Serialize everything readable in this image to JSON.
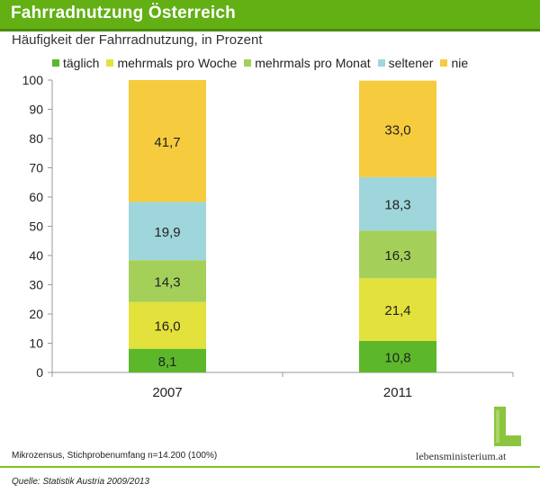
{
  "header": {
    "title": "Fahrradnutzung Österreich",
    "subtitle": "Häufigkeit der Fahrradnutzung, in Prozent"
  },
  "footer": {
    "note": "Mikrozensus, Stichprobenumfang n=14.200 (100%)",
    "source": "Quelle: Statistik Austria 2009/2013",
    "logo": "lebensministerium.at"
  },
  "colors": {
    "title_bar": "#62b014",
    "accent_line": "#7cc520"
  },
  "chart_data": {
    "type": "bar",
    "stacked": true,
    "title": "Fahrradnutzung Österreich",
    "subtitle": "Häufigkeit der Fahrradnutzung, in Prozent",
    "categories": [
      "2007",
      "2011"
    ],
    "ylim": [
      0,
      100
    ],
    "yticks": [
      0,
      10,
      20,
      30,
      40,
      50,
      60,
      70,
      80,
      90,
      100
    ],
    "legend_position": "top",
    "grid": false,
    "series": [
      {
        "name": "täglich",
        "color": "#5cb82a",
        "values": [
          8.1,
          10.8
        ],
        "labels": [
          "8,1",
          "10,8"
        ]
      },
      {
        "name": "mehrmals pro Woche",
        "color": "#e3e13c",
        "values": [
          16.0,
          21.4
        ],
        "labels": [
          "16,0",
          "21,4"
        ]
      },
      {
        "name": "mehrmals pro Monat",
        "color": "#a4d05a",
        "values": [
          14.3,
          16.3
        ],
        "labels": [
          "14,3",
          "16,3"
        ]
      },
      {
        "name": "seltener",
        "color": "#9fd6dc",
        "values": [
          19.9,
          18.3
        ],
        "labels": [
          "19,9",
          "18,3"
        ]
      },
      {
        "name": "nie",
        "color": "#f6cb3e",
        "values": [
          41.7,
          33.0
        ],
        "labels": [
          "41,7",
          "33,0"
        ]
      }
    ]
  }
}
